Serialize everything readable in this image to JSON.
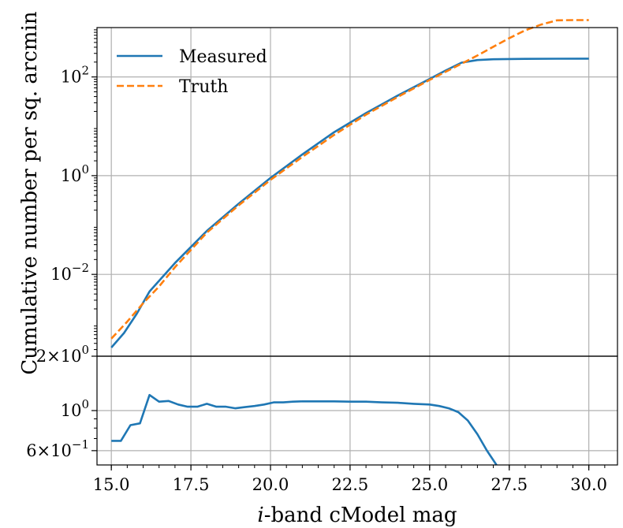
{
  "chart_data": [
    {
      "panel": "top",
      "type": "line",
      "ylabel": "Cumulative number per sq. arcmin",
      "yscale": "log",
      "ylim": [
        0.00022,
        1000
      ],
      "xlim": [
        14.55,
        30.9
      ],
      "grid": true,
      "legend_position": "top-left",
      "yticks": [
        {
          "value": 0.01,
          "base": "10",
          "exp": "−2"
        },
        {
          "value": 1,
          "base": "10",
          "exp": "0"
        },
        {
          "value": 100,
          "base": "10",
          "exp": "2"
        }
      ],
      "series": [
        {
          "name": "Measured",
          "color": "#1f77b4",
          "dash": "solid",
          "x": [
            15.0,
            15.4,
            15.8,
            16.2,
            17.0,
            18.0,
            19.0,
            20.0,
            21.0,
            22.0,
            23.0,
            24.0,
            25.0,
            25.5,
            26.0,
            26.5,
            27.0,
            28.0,
            29.0,
            30.0
          ],
          "y": [
            0.00033,
            0.00065,
            0.0016,
            0.0045,
            0.017,
            0.076,
            0.27,
            0.9,
            2.7,
            7.6,
            18.5,
            42,
            91,
            135,
            195,
            220,
            228,
            232,
            234,
            235
          ]
        },
        {
          "name": "Truth",
          "color": "#ff7f0e",
          "dash": "dashed",
          "x": [
            15.0,
            15.5,
            16.0,
            16.5,
            17.0,
            18.0,
            19.0,
            20.0,
            21.0,
            22.0,
            23.0,
            24.0,
            25.0,
            26.0,
            26.5,
            27.0,
            27.5,
            28.0,
            28.5,
            29.0,
            29.5,
            30.0
          ],
          "y": [
            0.0005,
            0.0011,
            0.0026,
            0.0057,
            0.014,
            0.07,
            0.25,
            0.82,
            2.4,
            6.7,
            17.2,
            39.5,
            87,
            185,
            272,
            410,
            610,
            880,
            1150,
            1400,
            1420,
            1420
          ]
        }
      ]
    },
    {
      "panel": "bottom",
      "type": "line",
      "xlabel": "i-band cModel mag",
      "xlabel_italic": "i",
      "xlabel_rest": "-band cModel mag",
      "yscale": "log",
      "ylim": [
        0.5,
        2.0
      ],
      "xlim": [
        14.55,
        30.9
      ],
      "grid": true,
      "xticks": [
        15.0,
        17.5,
        20.0,
        22.5,
        25.0,
        27.5,
        30.0
      ],
      "xtick_labels": [
        "15.0",
        "17.5",
        "20.0",
        "22.5",
        "25.0",
        "27.5",
        "30.0"
      ],
      "yticks": [
        {
          "value": 0.6,
          "base": "6×10",
          "exp": "−1"
        },
        {
          "value": 1,
          "base": "10",
          "exp": "0"
        },
        {
          "value": 2,
          "base": "2×10",
          "exp": "0"
        }
      ],
      "series": [
        {
          "name": "",
          "color": "#1f77b4",
          "dash": "solid",
          "x": [
            15.0,
            15.3,
            15.6,
            15.9,
            16.2,
            16.5,
            16.8,
            17.1,
            17.4,
            17.7,
            18.0,
            18.3,
            18.6,
            18.9,
            19.2,
            19.5,
            19.8,
            20.1,
            20.4,
            20.7,
            21.0,
            21.5,
            22.0,
            22.5,
            23.0,
            23.5,
            24.0,
            24.5,
            25.0,
            25.3,
            25.6,
            25.9,
            26.2,
            26.5,
            26.8,
            27.1
          ],
          "y": [
            0.68,
            0.68,
            0.83,
            0.85,
            1.22,
            1.12,
            1.13,
            1.08,
            1.05,
            1.05,
            1.09,
            1.05,
            1.05,
            1.03,
            1.045,
            1.06,
            1.08,
            1.11,
            1.11,
            1.12,
            1.125,
            1.125,
            1.125,
            1.12,
            1.12,
            1.11,
            1.105,
            1.09,
            1.08,
            1.06,
            1.03,
            0.98,
            0.88,
            0.74,
            0.6,
            0.5
          ]
        }
      ]
    }
  ]
}
